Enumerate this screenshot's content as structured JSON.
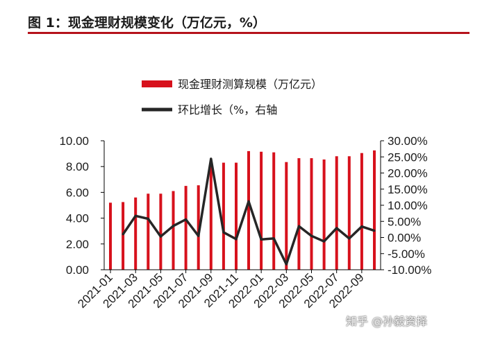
{
  "figure": {
    "title": "图 1：现金理财规模变化（万亿元，%）",
    "watermark": "知乎 @孙毅资择"
  },
  "colors": {
    "bar": "#d7111c",
    "line": "#262626",
    "title_rule": "#b5121b",
    "axis": "#000000"
  },
  "chart_data": {
    "type": "bar+line",
    "title": "",
    "xlabel": "",
    "ylabel": "",
    "x_tick_labels": [
      "2021-01",
      "2021-03",
      "2021-05",
      "2021-07",
      "2021-09",
      "2021-11",
      "2022-01",
      "2022-03",
      "2022-05",
      "2022-07",
      "2022-09"
    ],
    "y_left": {
      "lim": [
        0,
        10
      ],
      "tick_labels": [
        "0.00",
        "2.00",
        "4.00",
        "6.00",
        "8.00",
        "10.00"
      ],
      "tick_values": [
        0,
        2,
        4,
        6,
        8,
        10
      ]
    },
    "y_right": {
      "lim": [
        -10,
        30
      ],
      "tick_labels": [
        "-10.00%",
        "-5.00%",
        "0.00%",
        "5.00%",
        "10.00%",
        "15.00%",
        "20.00%",
        "25.00%",
        "30.00%"
      ],
      "tick_values": [
        -10,
        -5,
        0,
        5,
        10,
        15,
        20,
        25,
        30
      ]
    },
    "categories": [
      "2021-01",
      "2021-02",
      "2021-03",
      "2021-04",
      "2021-05",
      "2021-06",
      "2021-07",
      "2021-08",
      "2021-09",
      "2021-10",
      "2021-11",
      "2021-12",
      "2022-01",
      "2022-02",
      "2022-03",
      "2022-04",
      "2022-05",
      "2022-06",
      "2022-07",
      "2022-08",
      "2022-09",
      "2022-10"
    ],
    "series": [
      {
        "name": "现金理财测算规模（万亿元）",
        "kind": "bar",
        "axis": "left",
        "values": [
          5.2,
          5.25,
          5.6,
          5.9,
          5.9,
          6.1,
          6.5,
          6.55,
          8.2,
          8.3,
          8.3,
          9.2,
          9.15,
          9.1,
          8.35,
          8.65,
          8.65,
          8.55,
          8.8,
          8.8,
          9.05,
          9.25
        ]
      },
      {
        "name": "环比增长（%，右轴",
        "kind": "line",
        "axis": "right",
        "values": [
          null,
          1.0,
          6.7,
          5.8,
          0.3,
          3.6,
          5.6,
          0.5,
          24.4,
          1.6,
          -0.5,
          11.2,
          -0.6,
          -0.3,
          -8.3,
          3.5,
          0.5,
          -1.2,
          2.9,
          -0.3,
          3.4,
          2.1
        ]
      }
    ],
    "legend_position": "top-center",
    "grid": false
  }
}
